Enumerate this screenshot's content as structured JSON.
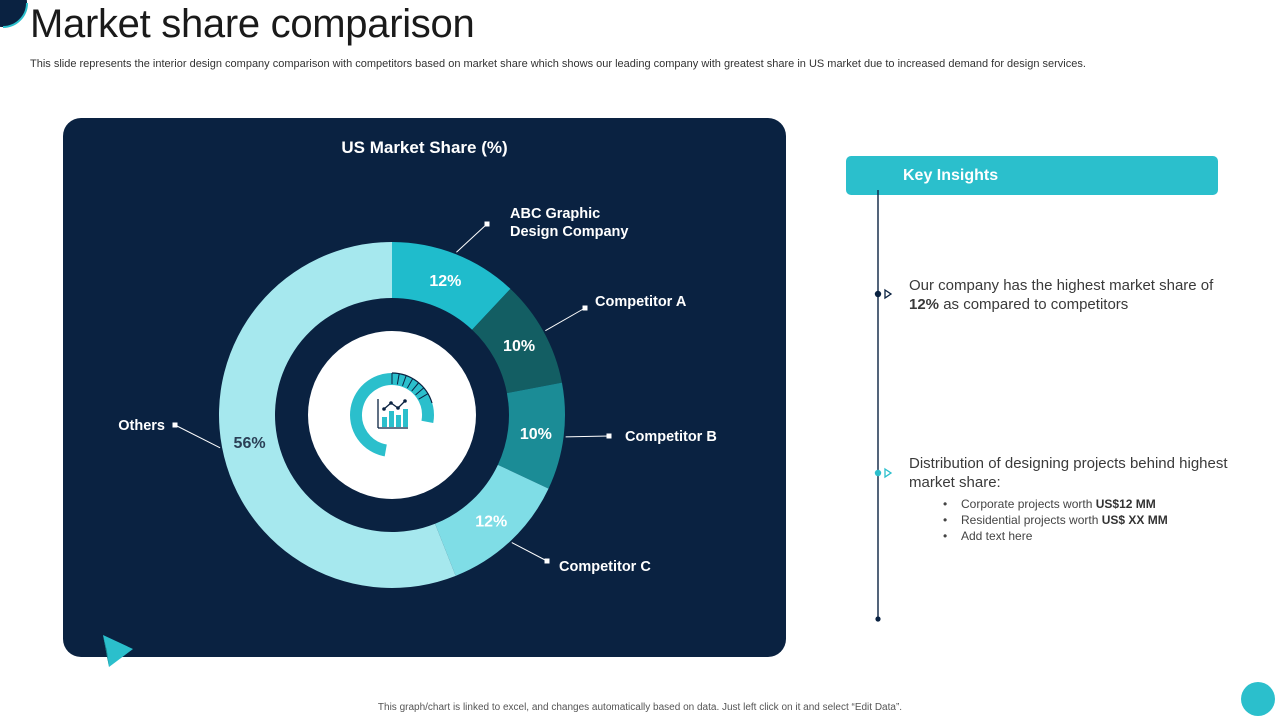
{
  "slide": {
    "title": "Market share comparison",
    "subtitle": "This slide represents the interior design company comparison with competitors based on market share which shows our leading company with greatest share in US market due to increased demand for design services.",
    "footer": "This graph/chart is linked to excel, and changes automatically based on data. Just left click on it and select “Edit Data”."
  },
  "chart_data": {
    "type": "pie",
    "title": "US Market Share (%)",
    "categories": [
      "ABC Graphic Design Company",
      "Competitor A",
      "Competitor B",
      "Competitor C",
      "Others"
    ],
    "label_lines": [
      [
        "ABC Graphic",
        "Design Company"
      ],
      [
        "Competitor A"
      ],
      [
        "Competitor B"
      ],
      [
        "Competitor C"
      ],
      [
        "Others"
      ]
    ],
    "values": [
      12,
      10,
      10,
      12,
      56
    ],
    "value_labels": [
      "12%",
      "10%",
      "10%",
      "12%",
      "56%"
    ],
    "colors": [
      "#1fbccc",
      "#135e63",
      "#1b8c96",
      "#7fdde6",
      "#a6e8ee"
    ],
    "center_icon": "chart-analytics-icon"
  },
  "insights": {
    "header": "Key Insights",
    "item1": {
      "prefix": "Our company has the highest market share of ",
      "highlight": "12%",
      "suffix": " as compared to competitors"
    },
    "item2": {
      "text": "Distribution of designing projects behind highest market share:",
      "bullets": [
        {
          "text": "Corporate  projects worth ",
          "bold": "US$12 MM"
        },
        {
          "text": "Residential projects worth ",
          "bold": "US$ XX MM"
        },
        {
          "text": "Add text here",
          "bold": ""
        }
      ]
    }
  },
  "colors": {
    "navy": "#0a2241",
    "teal": "#2bbfcc"
  }
}
